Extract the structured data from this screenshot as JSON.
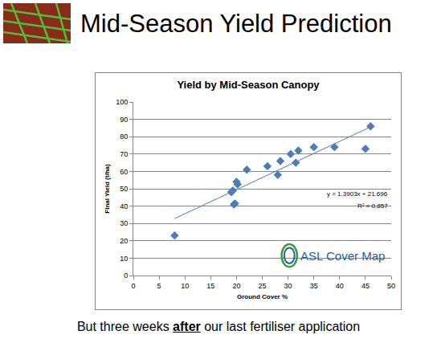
{
  "slide": {
    "title": "Mid-Season Yield Prediction",
    "caption": {
      "before": "But three weeks",
      "emphasis": "after",
      "after": "our last fertiliser application"
    }
  },
  "chart_data": {
    "type": "scatter",
    "title": "Yield by Mid-Season Canopy",
    "x_label": "Ground Cover %",
    "y_label": "Final Yield (t/ha)",
    "x": [
      8,
      19,
      19.3,
      19.5,
      19.7,
      20,
      20.2,
      22,
      26,
      28,
      28.5,
      30.5,
      31.5,
      32,
      35,
      39,
      45,
      46
    ],
    "values": [
      23,
      48,
      49,
      41,
      41.5,
      54,
      52.5,
      61,
      63,
      58,
      66,
      70,
      65,
      72,
      74,
      74,
      73,
      86
    ],
    "color": "#4a7ebb",
    "marker": "diamond",
    "trendline": {
      "slope": 1.3903,
      "intercept": 21.696,
      "xlim": [
        8,
        46
      ],
      "label": "y = 1.3903x + 21.696",
      "r2_label": "R² = 0.857",
      "r2": 0.857
    },
    "logo": "ASL Cover Map",
    "xlim": [
      0,
      50
    ],
    "xticks": [
      0,
      5,
      10,
      15,
      20,
      25,
      30,
      35,
      40,
      45,
      50
    ],
    "ylim": [
      0,
      100
    ],
    "yticks": [
      0,
      10,
      20,
      30,
      40,
      50,
      60,
      70,
      80,
      90,
      100
    ],
    "grid": true
  }
}
